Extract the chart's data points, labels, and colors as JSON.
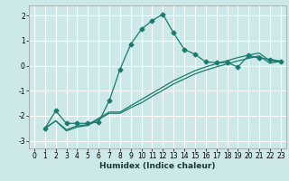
{
  "title": "",
  "xlabel": "Humidex (Indice chaleur)",
  "xlim": [
    -0.5,
    23.5
  ],
  "ylim": [
    -3.3,
    2.4
  ],
  "xticks": [
    0,
    1,
    2,
    3,
    4,
    5,
    6,
    7,
    8,
    9,
    10,
    11,
    12,
    13,
    14,
    15,
    16,
    17,
    18,
    19,
    20,
    21,
    22,
    23
  ],
  "yticks": [
    -3,
    -2,
    -1,
    0,
    1,
    2
  ],
  "bg_color": "#cce8e8",
  "grid_color": "#ffffff",
  "line_color": "#1a7a6e",
  "line1_x": [
    1,
    2,
    3,
    4,
    5,
    6,
    7,
    8,
    9,
    10,
    11,
    12,
    13,
    14,
    15,
    16,
    17,
    18,
    19,
    20,
    21,
    22,
    23
  ],
  "line1_y": [
    -2.5,
    -1.8,
    -2.3,
    -2.3,
    -2.3,
    -2.25,
    -1.4,
    -0.15,
    0.85,
    1.45,
    1.8,
    2.05,
    1.3,
    0.65,
    0.45,
    0.15,
    0.12,
    0.12,
    -0.05,
    0.4,
    0.3,
    0.25,
    0.18
  ],
  "line2_x": [
    1,
    2,
    3,
    4,
    5,
    6,
    7,
    8,
    9,
    10,
    11,
    12,
    13,
    14,
    15,
    16,
    17,
    18,
    19,
    20,
    21,
    22,
    23
  ],
  "line2_y": [
    -2.5,
    -2.2,
    -2.55,
    -2.4,
    -2.35,
    -2.1,
    -1.85,
    -1.85,
    -1.6,
    -1.35,
    -1.1,
    -0.85,
    -0.6,
    -0.4,
    -0.2,
    -0.05,
    0.08,
    0.2,
    0.32,
    0.42,
    0.5,
    0.18,
    0.18
  ],
  "line3_x": [
    1,
    2,
    3,
    4,
    5,
    6,
    7,
    8,
    9,
    10,
    11,
    12,
    13,
    14,
    15,
    16,
    17,
    18,
    19,
    20,
    21,
    22,
    23
  ],
  "line3_y": [
    -2.5,
    -2.2,
    -2.6,
    -2.45,
    -2.38,
    -2.15,
    -1.9,
    -1.9,
    -1.68,
    -1.48,
    -1.22,
    -0.98,
    -0.73,
    -0.53,
    -0.33,
    -0.18,
    -0.05,
    0.07,
    0.19,
    0.29,
    0.39,
    0.09,
    0.18
  ],
  "marker_style": "D",
  "marker_size": 2.5,
  "tick_fontsize": 5.5,
  "xlabel_fontsize": 6.5
}
